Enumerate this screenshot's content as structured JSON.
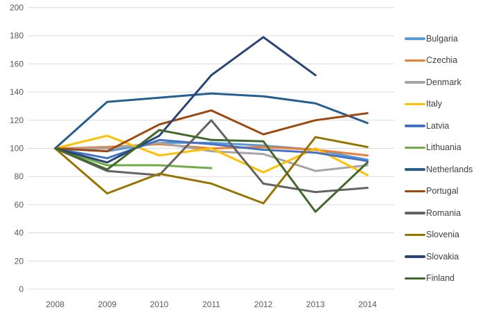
{
  "chart_data": {
    "type": "line",
    "title": "",
    "xlabel": "",
    "ylabel": "",
    "categories": [
      "2008",
      "2009",
      "2010",
      "2011",
      "2012",
      "2013",
      "2014"
    ],
    "ylim": [
      0,
      200
    ],
    "ytick_step": 20,
    "y_ticks": [
      "0",
      "20",
      "40",
      "60",
      "80",
      "100",
      "120",
      "140",
      "160",
      "180",
      "200"
    ],
    "grid": true,
    "legend_position": "right",
    "gridline_color": "#d9d9d9",
    "tick_label_color": "#595959",
    "legend_text_color": "#404040",
    "series": [
      {
        "name": "Bulgaria",
        "color": "#5B9BD5",
        "values": [
          100,
          98,
          104,
          104,
          102,
          99,
          92
        ]
      },
      {
        "name": "Czechia",
        "color": "#ED7D31",
        "values": [
          100,
          101,
          103,
          100,
          101,
          99,
          95
        ]
      },
      {
        "name": "Denmark",
        "color": "#A5A5A5",
        "values": [
          100,
          100,
          104,
          98,
          96,
          84,
          88
        ]
      },
      {
        "name": "Italy",
        "color": "#FFC000",
        "values": [
          100,
          109,
          95,
          100,
          83,
          100,
          81
        ]
      },
      {
        "name": "Latvia",
        "color": "#4472C4",
        "values": [
          100,
          93,
          106,
          103,
          99,
          97,
          91
        ]
      },
      {
        "name": "Lithuania",
        "color": "#70AD47",
        "values": [
          100,
          88,
          88,
          86,
          null,
          null,
          null
        ]
      },
      {
        "name": "Netherlands",
        "color": "#255E91",
        "values": [
          100,
          133,
          136,
          139,
          137,
          132,
          118
        ]
      },
      {
        "name": "Portugal",
        "color": "#9E480E",
        "values": [
          100,
          98,
          117,
          127,
          110,
          120,
          125
        ]
      },
      {
        "name": "Romania",
        "color": "#636363",
        "values": [
          100,
          84,
          81,
          120,
          75,
          69,
          72
        ]
      },
      {
        "name": "Slovenia",
        "color": "#997300",
        "values": [
          100,
          68,
          82,
          75,
          61,
          108,
          101
        ]
      },
      {
        "name": "Slovakia",
        "color": "#264478",
        "values": [
          100,
          90,
          109,
          152,
          179,
          152,
          null
        ]
      },
      {
        "name": "Finland",
        "color": "#43682B",
        "values": [
          100,
          85,
          113,
          106,
          105,
          55,
          90
        ]
      }
    ]
  }
}
